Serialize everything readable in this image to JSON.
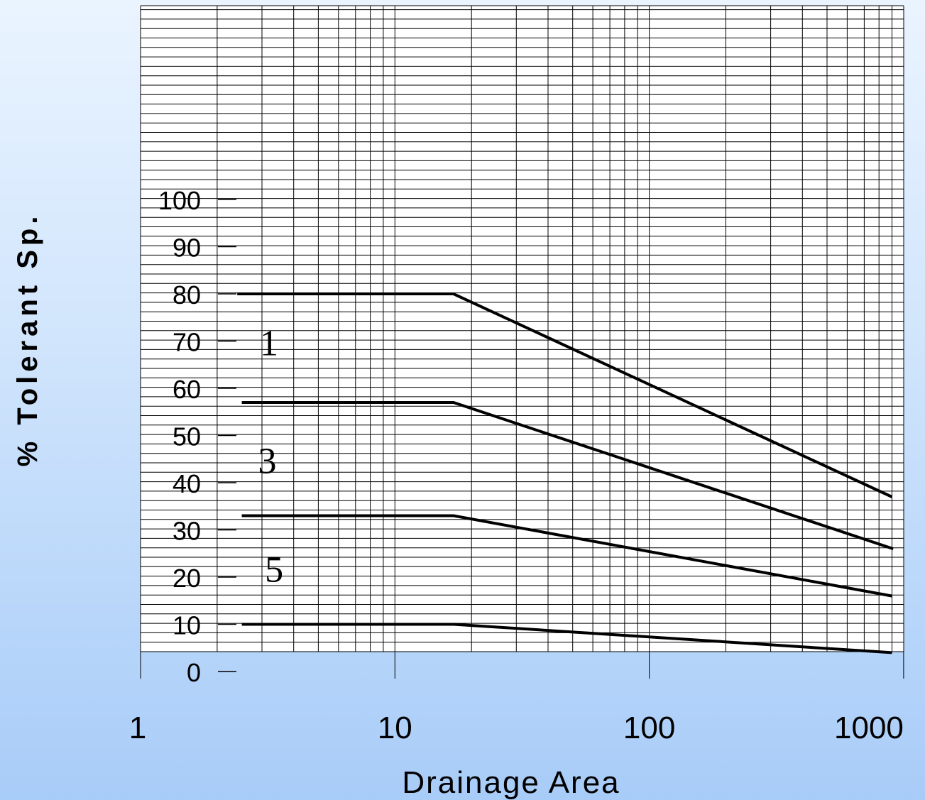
{
  "chart_data": {
    "type": "line",
    "title": "",
    "xlabel": "Drainage Area",
    "ylabel": "% Tolerant Sp.",
    "x_scale": "log",
    "xlim": [
      1,
      1000
    ],
    "ylim": [
      0,
      100
    ],
    "x_tick_labels": [
      "1",
      "10",
      "100",
      "1000"
    ],
    "x_ticks": [
      1,
      10,
      100,
      1000
    ],
    "y_ticks": [
      0,
      10,
      20,
      30,
      40,
      50,
      60,
      70,
      80,
      90,
      100
    ],
    "y_tick_labels": [
      "0",
      "10",
      "20",
      "30",
      "40",
      "50",
      "60",
      "70",
      "80",
      "90",
      "100"
    ],
    "grid": true,
    "curve_labels": [
      "1",
      "3",
      "5"
    ],
    "series": [
      {
        "x": [
          2.4,
          17,
          900
        ],
        "y": [
          80,
          80,
          37
        ]
      },
      {
        "x": [
          2.5,
          17,
          910
        ],
        "y": [
          57,
          57,
          26
        ]
      },
      {
        "x": [
          2.5,
          17,
          900
        ],
        "y": [
          33,
          33,
          16
        ]
      },
      {
        "x": [
          2.5,
          17,
          900
        ],
        "y": [
          10,
          10,
          4
        ]
      }
    ],
    "line_color": "#000000"
  }
}
